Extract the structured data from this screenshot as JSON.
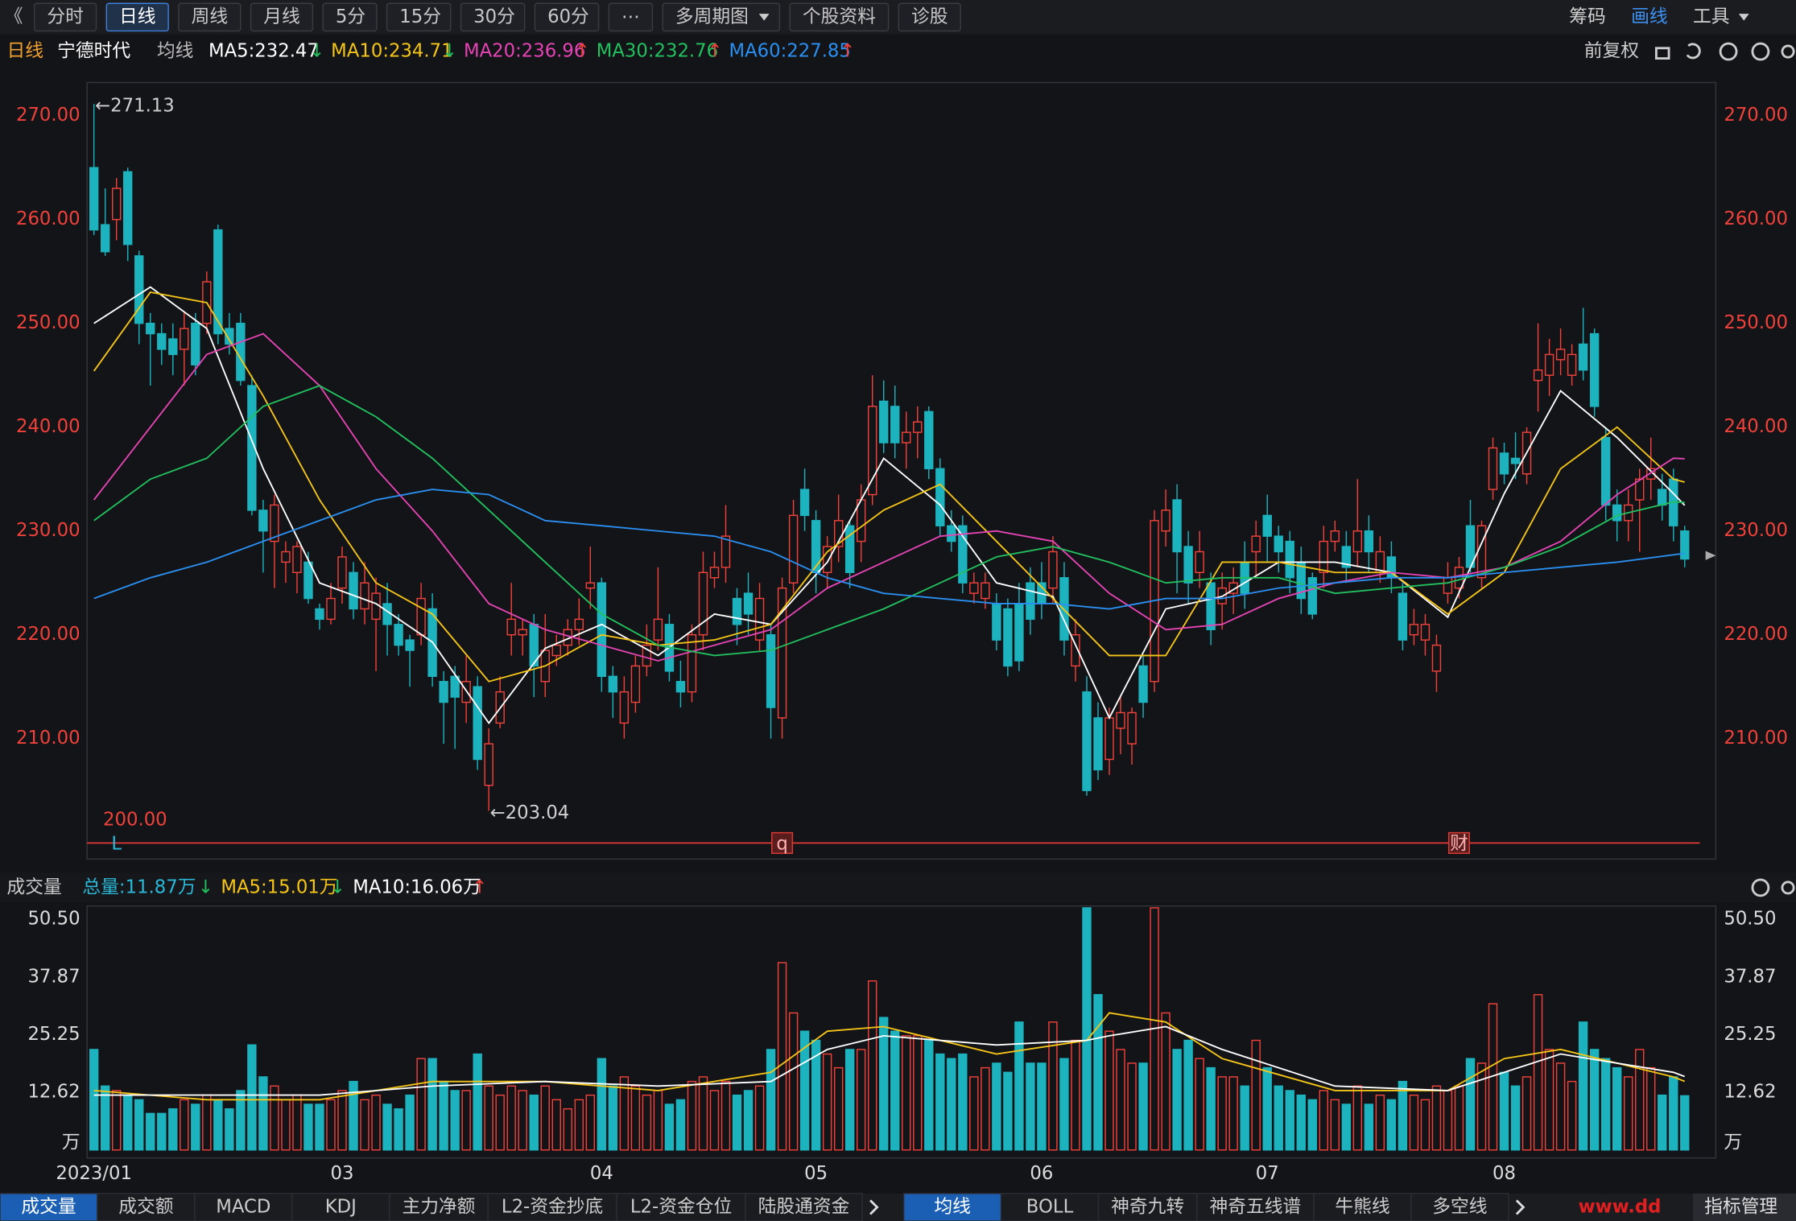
{
  "toolbar": {
    "left": [
      "《",
      "分时",
      "日线",
      "周线",
      "月线",
      "5分",
      "15分",
      "30分",
      "60分",
      "⋯",
      "多周期图",
      "个股资料",
      "诊股"
    ],
    "left_active": 2,
    "dropdown": [
      10
    ],
    "right": [
      "筹码",
      "画线",
      "工具"
    ],
    "right_active": 1,
    "right_dropdown": [
      2
    ]
  },
  "chart_data": {
    "type": "candlestick",
    "period": "日线",
    "title": "宁德时代",
    "ma_caption": "均线",
    "adjust": "前复权",
    "up_color": "#f0413b",
    "down_color": "#1cb3bf",
    "ylim": [
      198.4,
      273.2
    ],
    "yticks": [
      {
        "value": 210,
        "label": "210.00"
      },
      {
        "value": 220,
        "label": "220.00"
      },
      {
        "value": 230,
        "label": "230.00"
      },
      {
        "value": 240,
        "label": "240.00"
      },
      {
        "value": 250,
        "label": "250.00"
      },
      {
        "value": 260,
        "label": "260.00"
      },
      {
        "value": 270,
        "label": "270.00"
      }
    ],
    "grid": false,
    "candles": [
      [
        265,
        271.13,
        258.5,
        259
      ],
      [
        259.5,
        263,
        256.5,
        256.9
      ],
      [
        260,
        264,
        258,
        263
      ],
      [
        264.6,
        265,
        256,
        257.6
      ],
      [
        256.5,
        257,
        248,
        250
      ],
      [
        250,
        251,
        244,
        249
      ],
      [
        249,
        250,
        246,
        247.5
      ],
      [
        248.5,
        250,
        245,
        247
      ],
      [
        247.5,
        251,
        244,
        249.5
      ],
      [
        250,
        251,
        245,
        246
      ],
      [
        250,
        255,
        249,
        254
      ],
      [
        259,
        259.5,
        248,
        249
      ],
      [
        249.5,
        251,
        247,
        248
      ],
      [
        250,
        251,
        244,
        244.5
      ],
      [
        244,
        245,
        231.5,
        232
      ],
      [
        232,
        233,
        226,
        230
      ],
      [
        229,
        233.5,
        224.5,
        232.5
      ],
      [
        227,
        229,
        225,
        228
      ],
      [
        226,
        229,
        224,
        228.5
      ],
      [
        227,
        228,
        223,
        223.5
      ],
      [
        222.5,
        223,
        220.5,
        221.5
      ],
      [
        221.5,
        225,
        221,
        223.5
      ],
      [
        224.5,
        228.5,
        223,
        227.5
      ],
      [
        226,
        227,
        221.5,
        222.5
      ],
      [
        222.5,
        227,
        221,
        225
      ],
      [
        221.5,
        225.5,
        216.5,
        224
      ],
      [
        223,
        225,
        218,
        221
      ],
      [
        221,
        222,
        218,
        219
      ],
      [
        219.5,
        220,
        215,
        218.5
      ],
      [
        220,
        225,
        219,
        223.5
      ],
      [
        222.5,
        224,
        215,
        216
      ],
      [
        215.5,
        216.5,
        209.5,
        213.5
      ],
      [
        216,
        217,
        209,
        214
      ],
      [
        213.5,
        218,
        211.5,
        215.5
      ],
      [
        215,
        216,
        207,
        208
      ],
      [
        205.5,
        211,
        203.04,
        209.5
      ],
      [
        211.5,
        216,
        211,
        214.5
      ],
      [
        220,
        225,
        218,
        221.5
      ],
      [
        220,
        221.5,
        218,
        220.5
      ],
      [
        221,
        222,
        214,
        217
      ],
      [
        215.5,
        222,
        214,
        218.5
      ],
      [
        218,
        220,
        217,
        219
      ],
      [
        219,
        221.5,
        218,
        220.5
      ],
      [
        220.5,
        223.5,
        219,
        221.5
      ],
      [
        224.5,
        228.5,
        222.5,
        225
      ],
      [
        225,
        225.5,
        214.5,
        216
      ],
      [
        216,
        217,
        212,
        214.5
      ],
      [
        211.5,
        216,
        210,
        214.5
      ],
      [
        213.5,
        218,
        212.5,
        217
      ],
      [
        217,
        221,
        216,
        219
      ],
      [
        219.5,
        226.5,
        218.5,
        221.5
      ],
      [
        221,
        222,
        215.5,
        216.5
      ],
      [
        215.5,
        217.5,
        213,
        214.5
      ],
      [
        214.5,
        221,
        213.5,
        220
      ],
      [
        220,
        228,
        218.5,
        226
      ],
      [
        225.5,
        228,
        224.5,
        226.5
      ],
      [
        226.5,
        232.5,
        225,
        229.5
      ],
      [
        223.5,
        224.5,
        219,
        221
      ],
      [
        224,
        226,
        220,
        222
      ],
      [
        219.5,
        225,
        218.5,
        223.5
      ],
      [
        220,
        221,
        210,
        213
      ],
      [
        212,
        225.5,
        210,
        224.5
      ],
      [
        225,
        233,
        224,
        231.5
      ],
      [
        234,
        236,
        230,
        231.5
      ],
      [
        231,
        232,
        224,
        226
      ],
      [
        226,
        229.5,
        224.5,
        228.5
      ],
      [
        228.5,
        233.5,
        227,
        231
      ],
      [
        230.5,
        231,
        224.5,
        226
      ],
      [
        229,
        234.5,
        227,
        233
      ],
      [
        233.5,
        245,
        232.5,
        242
      ],
      [
        242.5,
        244.5,
        237.5,
        238.5
      ],
      [
        242,
        244,
        237,
        238.5
      ],
      [
        238.5,
        241.5,
        236,
        239.5
      ],
      [
        239.5,
        242,
        237,
        240.5
      ],
      [
        241.5,
        242,
        235,
        236
      ],
      [
        236,
        237,
        229.5,
        230.5
      ],
      [
        230.5,
        232,
        228,
        229
      ],
      [
        230.5,
        231.5,
        224,
        225
      ],
      [
        224,
        226,
        223,
        225
      ],
      [
        223.5,
        226,
        222.5,
        225
      ],
      [
        223,
        224,
        218.5,
        219.5
      ],
      [
        222.5,
        223.5,
        216,
        217
      ],
      [
        223,
        225,
        216.5,
        217.5
      ],
      [
        225,
        226.5,
        220,
        221.5
      ],
      [
        225,
        227,
        221.5,
        223
      ],
      [
        224.5,
        229.5,
        223,
        228
      ],
      [
        225.5,
        227,
        218,
        219.5
      ],
      [
        217,
        221.5,
        215.5,
        220
      ],
      [
        214.5,
        216,
        204.5,
        205
      ],
      [
        212,
        213.5,
        206,
        207
      ],
      [
        208,
        213,
        206.5,
        212
      ],
      [
        211,
        214,
        208.5,
        212.5
      ],
      [
        209.5,
        213,
        207.5,
        212.5
      ],
      [
        217,
        218,
        212,
        213.5
      ],
      [
        215.5,
        232,
        214.5,
        231
      ],
      [
        230,
        234,
        228.5,
        232
      ],
      [
        233,
        234.5,
        224,
        228
      ],
      [
        228.5,
        230,
        223,
        225
      ],
      [
        226,
        230,
        224.5,
        228
      ],
      [
        225,
        226,
        219,
        220.5
      ],
      [
        223,
        226,
        220.5,
        224.5
      ],
      [
        224,
        226.5,
        222,
        225
      ],
      [
        227,
        229,
        222.5,
        224
      ],
      [
        228,
        231,
        225.5,
        229.5
      ],
      [
        231.5,
        233.5,
        227,
        229.5
      ],
      [
        229.5,
        230.5,
        226,
        228
      ],
      [
        229,
        230,
        224,
        225.5
      ],
      [
        227,
        228.5,
        222,
        223.5
      ],
      [
        225.5,
        226,
        221.5,
        222
      ],
      [
        226,
        230.5,
        224.5,
        229
      ],
      [
        229,
        231,
        228,
        230
      ],
      [
        228.5,
        230,
        225,
        226.5
      ],
      [
        228,
        235,
        226.5,
        230
      ],
      [
        230,
        231.5,
        226,
        228
      ],
      [
        226,
        229.5,
        225,
        228
      ],
      [
        227.5,
        229,
        224,
        225.5
      ],
      [
        224,
        225,
        218.5,
        219.5
      ],
      [
        220,
        222.5,
        219,
        221
      ],
      [
        219.5,
        222,
        218,
        221
      ],
      [
        216.5,
        220,
        214.5,
        219
      ],
      [
        224,
        227,
        223,
        225.5
      ],
      [
        224.5,
        227.5,
        223.5,
        226.5
      ],
      [
        230.5,
        233,
        226,
        226.5
      ],
      [
        225.5,
        231,
        224.5,
        230.5
      ],
      [
        234,
        239,
        233,
        238
      ],
      [
        237.5,
        238.5,
        234.5,
        235.5
      ],
      [
        237,
        239.5,
        235,
        236.5
      ],
      [
        235.5,
        240,
        234.5,
        239.5
      ],
      [
        244.5,
        250,
        241.5,
        245.5
      ],
      [
        245,
        248.5,
        243,
        247
      ],
      [
        246.5,
        249.5,
        245,
        247.5
      ],
      [
        245,
        248,
        244,
        247
      ],
      [
        248,
        251.5,
        244.5,
        245.5
      ],
      [
        249,
        249.5,
        241,
        242
      ],
      [
        239,
        240,
        231,
        232.5
      ],
      [
        232.5,
        234,
        229,
        231
      ],
      [
        231,
        234,
        229,
        232.5
      ],
      [
        233,
        236,
        228,
        235
      ],
      [
        235,
        239,
        233,
        236
      ],
      [
        234,
        235.5,
        231,
        232.5
      ],
      [
        235,
        236,
        229,
        230.5
      ],
      [
        230,
        230.5,
        226.5,
        227.3
      ]
    ],
    "ma_x": [
      0,
      5,
      10,
      15,
      20,
      25,
      30,
      35,
      40,
      45,
      50,
      55,
      60,
      65,
      70,
      75,
      80,
      85,
      90,
      95,
      100,
      105,
      110,
      115,
      120,
      125,
      130,
      135,
      140,
      141
    ],
    "series": [
      {
        "name": "MA5",
        "legend": "MA5:232.47",
        "trend": "↓",
        "color": "#ffffff",
        "values": [
          250,
          253.5,
          249.5,
          236,
          225,
          223,
          219.3,
          211.5,
          218.7,
          221,
          218,
          222,
          221,
          227,
          237,
          232.5,
          225,
          223.7,
          212,
          222.5,
          223.7,
          227,
          227,
          226,
          221.7,
          233.6,
          243.5,
          239,
          233.6,
          232.47
        ]
      },
      {
        "name": "MA10",
        "legend": "MA10:234.71",
        "trend": "↓",
        "color": "#f5c518",
        "values": [
          245.4,
          253,
          252,
          243,
          233,
          225,
          222,
          215.5,
          217,
          220,
          219,
          219.5,
          221,
          228,
          232,
          234.5,
          229,
          223.5,
          218,
          218,
          227,
          227,
          226,
          226,
          222,
          226,
          236,
          240,
          235,
          234.71
        ]
      },
      {
        "name": "MA20",
        "legend": "MA20:236.96",
        "trend": "↑",
        "color": "#e544b4",
        "values": [
          233,
          240,
          247,
          249,
          244,
          236,
          230,
          223,
          220.5,
          219,
          217.5,
          219,
          220.5,
          224.5,
          227,
          229.5,
          230,
          229,
          224,
          220.5,
          221,
          223.5,
          225,
          226,
          225.5,
          226.5,
          229,
          233.5,
          237,
          236.96
        ]
      },
      {
        "name": "MA30",
        "legend": "MA30:232.76",
        "trend": "↑",
        "color": "#22c05e",
        "values": [
          231,
          235,
          237,
          242,
          244,
          241,
          237,
          232,
          227,
          222,
          219,
          218,
          218.5,
          220.5,
          222.5,
          225,
          227.5,
          228.5,
          227,
          225,
          225.5,
          225.5,
          224,
          224.5,
          225,
          226.5,
          228.5,
          231.5,
          232.8,
          232.76
        ]
      },
      {
        "name": "MA60",
        "legend": "MA60:227.85",
        "trend": "↑",
        "color": "#2a8ff0",
        "values": [
          223.5,
          225.5,
          227,
          229,
          231,
          233,
          234,
          233.5,
          231,
          230.5,
          230,
          229.5,
          228,
          225.5,
          224,
          223.5,
          223,
          223,
          222.5,
          223.5,
          223.5,
          224.5,
          225,
          225.5,
          225.5,
          226,
          226.5,
          227,
          227.7,
          227.85
        ]
      }
    ],
    "x_ticks": [
      {
        "value": 0,
        "label": "2023/01"
      },
      {
        "value": 22,
        "label": "03"
      },
      {
        "value": 45,
        "label": "04"
      },
      {
        "value": 64,
        "label": "05"
      },
      {
        "value": 84,
        "label": "06"
      },
      {
        "value": 104,
        "label": "07"
      },
      {
        "value": 125,
        "label": "08"
      }
    ],
    "annotations": [
      {
        "index": 0,
        "value": 271.13,
        "label": "←271.13"
      },
      {
        "index": 35,
        "value": 203.04,
        "label": "←203.04"
      }
    ],
    "ruler_label": "200.00",
    "markers": [
      {
        "index": 2,
        "label": "L"
      },
      {
        "index": 61,
        "label": "q"
      },
      {
        "index": 121,
        "label": "财"
      }
    ],
    "volume": {
      "title": "成交量",
      "unit": "万",
      "ylim": [
        0,
        52.9
      ],
      "yticks": [
        12.62,
        25.25,
        37.87,
        {
          "value": 50.5,
          "label": "50.50"
        }
      ],
      "legend": [
        {
          "label": "总量:11.87万",
          "trend": "↓",
          "color": "#2ab8d8"
        },
        {
          "label": "MA5:15.01万",
          "trend": "↓",
          "color": "#f5c518"
        },
        {
          "label": "MA10:16.06万",
          "trend": "↑",
          "color": "#ffffff"
        }
      ],
      "values": [
        22,
        14,
        13,
        12,
        11,
        8,
        8,
        9,
        11,
        10,
        12,
        11,
        9,
        13,
        23,
        16,
        14,
        11,
        12,
        10,
        10,
        11,
        13,
        15,
        11,
        12,
        10,
        9,
        12,
        20,
        20,
        15,
        13,
        13,
        21,
        14,
        12,
        14,
        13,
        12,
        14,
        11,
        9,
        11,
        12,
        20,
        14,
        16,
        14,
        12,
        13,
        10,
        11,
        15,
        16,
        13,
        15,
        12,
        13,
        14,
        22,
        41,
        30,
        26,
        24,
        21,
        18,
        22,
        22,
        37,
        29,
        26,
        25,
        25,
        24,
        21,
        20,
        21,
        16,
        18,
        19,
        17,
        28,
        19,
        19,
        28,
        20,
        24,
        53,
        34,
        26,
        22,
        19,
        19,
        53,
        30,
        22,
        24,
        20,
        18,
        16,
        16,
        14,
        24,
        18,
        14,
        13,
        12,
        11,
        13,
        11,
        10,
        14,
        10,
        12,
        11,
        15,
        12,
        11,
        14,
        13,
        14,
        20,
        19,
        32,
        17,
        14,
        16,
        34,
        22,
        19,
        15,
        28,
        22,
        20,
        18,
        16,
        22,
        18,
        12,
        16,
        11.87
      ],
      "ma_x": [
        0,
        10,
        20,
        30,
        40,
        50,
        60,
        65,
        70,
        80,
        88,
        90,
        95,
        100,
        110,
        120,
        125,
        130,
        135,
        140,
        141
      ],
      "series": [
        {
          "color": "#f5c518",
          "values": [
            13,
            11,
            11,
            15,
            15,
            13,
            17,
            26,
            27,
            21,
            24,
            30,
            28,
            20,
            13,
            13,
            20,
            22,
            19,
            16,
            15.01
          ]
        },
        {
          "color": "#ffffff",
          "values": [
            12,
            12,
            12,
            14,
            15,
            14,
            15,
            22,
            25,
            23,
            24,
            25,
            27,
            22,
            14,
            13,
            17,
            21,
            19,
            17,
            16.06
          ]
        }
      ]
    }
  },
  "tabs": {
    "left": [
      "成交量",
      "成交额",
      "MACD",
      "KDJ",
      "主力净额",
      "L2-资金抄底",
      "L2-资金仓位",
      "陆股通资金"
    ],
    "left_active": 0,
    "right": [
      "均线",
      "BOLL",
      "神奇九转",
      "神奇五线谱",
      "牛熊线",
      "多空线"
    ],
    "right_active": 0,
    "watermark": "www.dd",
    "manager": "指标管理"
  }
}
